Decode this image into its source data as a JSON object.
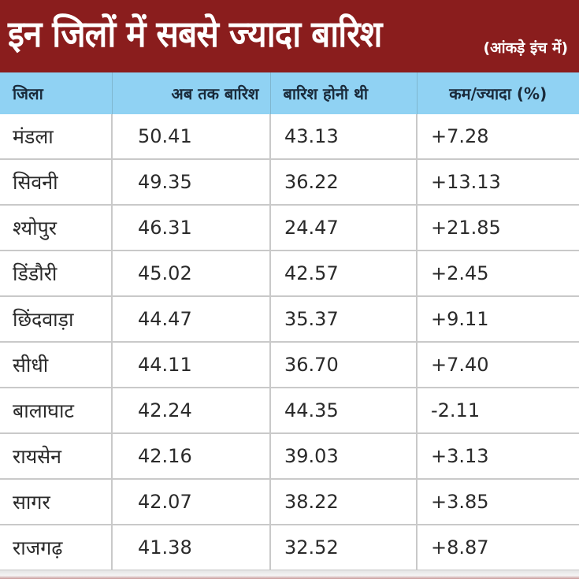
{
  "title": {
    "main": "इन जिलों में सबसे ज्यादा बारिश",
    "unit_note": "(आंकड़े इंच में)"
  },
  "colors": {
    "title_bg": "#8a1d1d",
    "header_bg": "#90d2f3",
    "text": "#2a2a2a"
  },
  "table": {
    "headers": [
      "जिला",
      "अब तक बारिश",
      "बारिश होनी थी",
      "कम/ज्यादा (%)"
    ],
    "rows": [
      [
        "मंडला",
        "50.41",
        "43.13",
        "+7.28"
      ],
      [
        "सिवनी",
        "49.35",
        "36.22",
        "+13.13"
      ],
      [
        "श्योपुर",
        "46.31",
        "24.47",
        "+21.85"
      ],
      [
        "डिंडौरी",
        "45.02",
        "42.57",
        "+2.45"
      ],
      [
        "छिंदवाड़ा",
        "44.47",
        "35.37",
        "+9.11"
      ],
      [
        "सीधी",
        "44.11",
        "36.70",
        "+7.40"
      ],
      [
        "बालाघाट",
        "42.24",
        "44.35",
        "-2.11"
      ],
      [
        "रायसेन",
        "42.16",
        "39.03",
        "+3.13"
      ],
      [
        "सागर",
        "42.07",
        "38.22",
        "+3.85"
      ],
      [
        "राजगढ़",
        "41.38",
        "32.52",
        "+8.87"
      ]
    ]
  }
}
